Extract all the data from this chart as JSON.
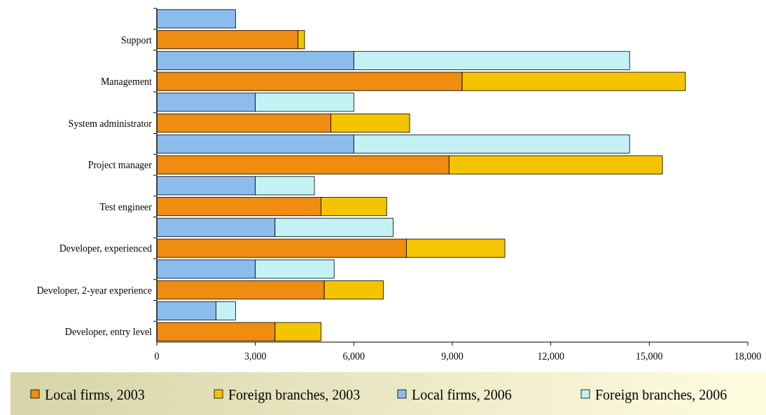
{
  "chart_data": {
    "type": "bar",
    "orientation": "horizontal",
    "stacked": true,
    "categories": [
      null,
      "Support",
      null,
      "Management",
      null,
      "System administrator",
      null,
      "Project manager",
      null,
      "Test engineer",
      null,
      "Developer, experienced",
      null,
      "Developer, 2-year experience",
      null,
      "Developer, entry level"
    ],
    "series": [
      {
        "name": "Local firms, 2003",
        "color": "#f08c10",
        "values": [
          null,
          4300,
          null,
          9300,
          null,
          5300,
          null,
          8900,
          null,
          5000,
          null,
          7600,
          null,
          5100,
          null,
          3600
        ]
      },
      {
        "name": "Foreign branches, 2003",
        "color": "#f5c400",
        "values": [
          null,
          200,
          null,
          6800,
          null,
          2400,
          null,
          6500,
          null,
          2000,
          null,
          3000,
          null,
          1800,
          null,
          1400
        ]
      },
      {
        "name": "Local firms, 2006",
        "color": "#8cbcec",
        "values": [
          2400,
          null,
          6000,
          null,
          3000,
          null,
          6000,
          null,
          3000,
          null,
          3600,
          null,
          3000,
          null,
          1800,
          null
        ]
      },
      {
        "name": "Foreign branches, 2006",
        "color": "#c4f2f4",
        "values": [
          null,
          null,
          8400,
          null,
          3000,
          null,
          8400,
          null,
          1800,
          null,
          3600,
          null,
          2400,
          null,
          600,
          null
        ]
      }
    ],
    "xlim": [
      0,
      18000
    ],
    "xticks": [
      {
        "value": 0,
        "label": "0"
      },
      {
        "value": 3000,
        "label": "3,000"
      },
      {
        "value": 6000,
        "label": "6,000"
      },
      {
        "value": 9000,
        "label": "9,000"
      },
      {
        "value": 12000,
        "label": "12,000"
      },
      {
        "value": 15000,
        "label": "15,000"
      },
      {
        "value": 18000,
        "label": "18,000"
      }
    ],
    "legend": "bottom"
  }
}
